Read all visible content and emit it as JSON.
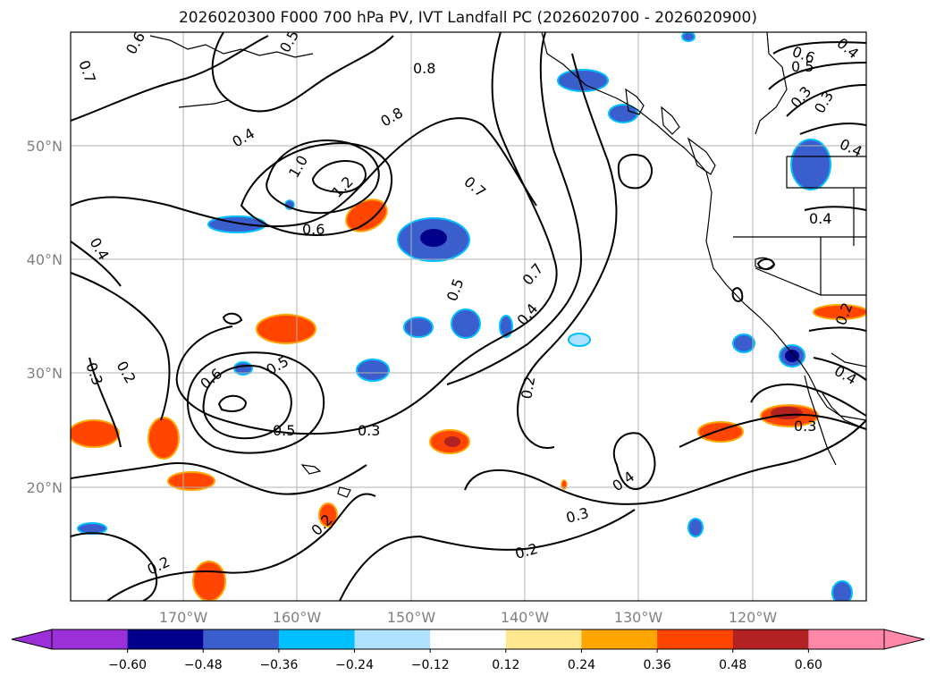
{
  "title": "2026020300 F000 700 hPa PV, IVT Landfall PC (2026020700 - 2026020900)",
  "axes": {
    "lon_labels": [
      "170°W",
      "160°W",
      "150°W",
      "140°W",
      "130°W",
      "120°W"
    ],
    "lat_labels": [
      "50°N",
      "40°N",
      "30°N",
      "20°N"
    ]
  },
  "colorbar": {
    "tick_labels": [
      "−0.60",
      "−0.48",
      "−0.36",
      "−0.24",
      "−0.12",
      "0.12",
      "0.24",
      "0.36",
      "0.48",
      "0.60"
    ],
    "colors": {
      "under": "#9b30d9",
      "levels": [
        "#9b30d9",
        "#00008b",
        "#3a5fcd",
        "#00bfff",
        "#b0e2ff",
        "#ffffff",
        "#ffe890",
        "#ffa500",
        "#ff4500",
        "#b22222",
        "#ff88aa"
      ],
      "over": "#ff88aa"
    }
  },
  "contour_labels": [
    "0.6",
    "0.7",
    "0.5",
    "0.8",
    "0.8",
    "0.6",
    "0.5",
    "0.3",
    "0.4",
    "0.4",
    "1.0",
    "1.2",
    "0.7",
    "0.6",
    "0.4",
    "0.4",
    "0.5",
    "0.7",
    "0.4",
    "0.2",
    "0.3",
    "0.6",
    "0.5",
    "0.5",
    "0.3",
    "0.2",
    "0.4",
    "0.3",
    "0.2",
    "0.2",
    "0.2",
    "0.4",
    "0.3",
    "0.4",
    "0.3",
    "0.2"
  ],
  "colors": {
    "contour": "#000000",
    "grid": "#b0b0b0",
    "land_outline": "#000000"
  }
}
